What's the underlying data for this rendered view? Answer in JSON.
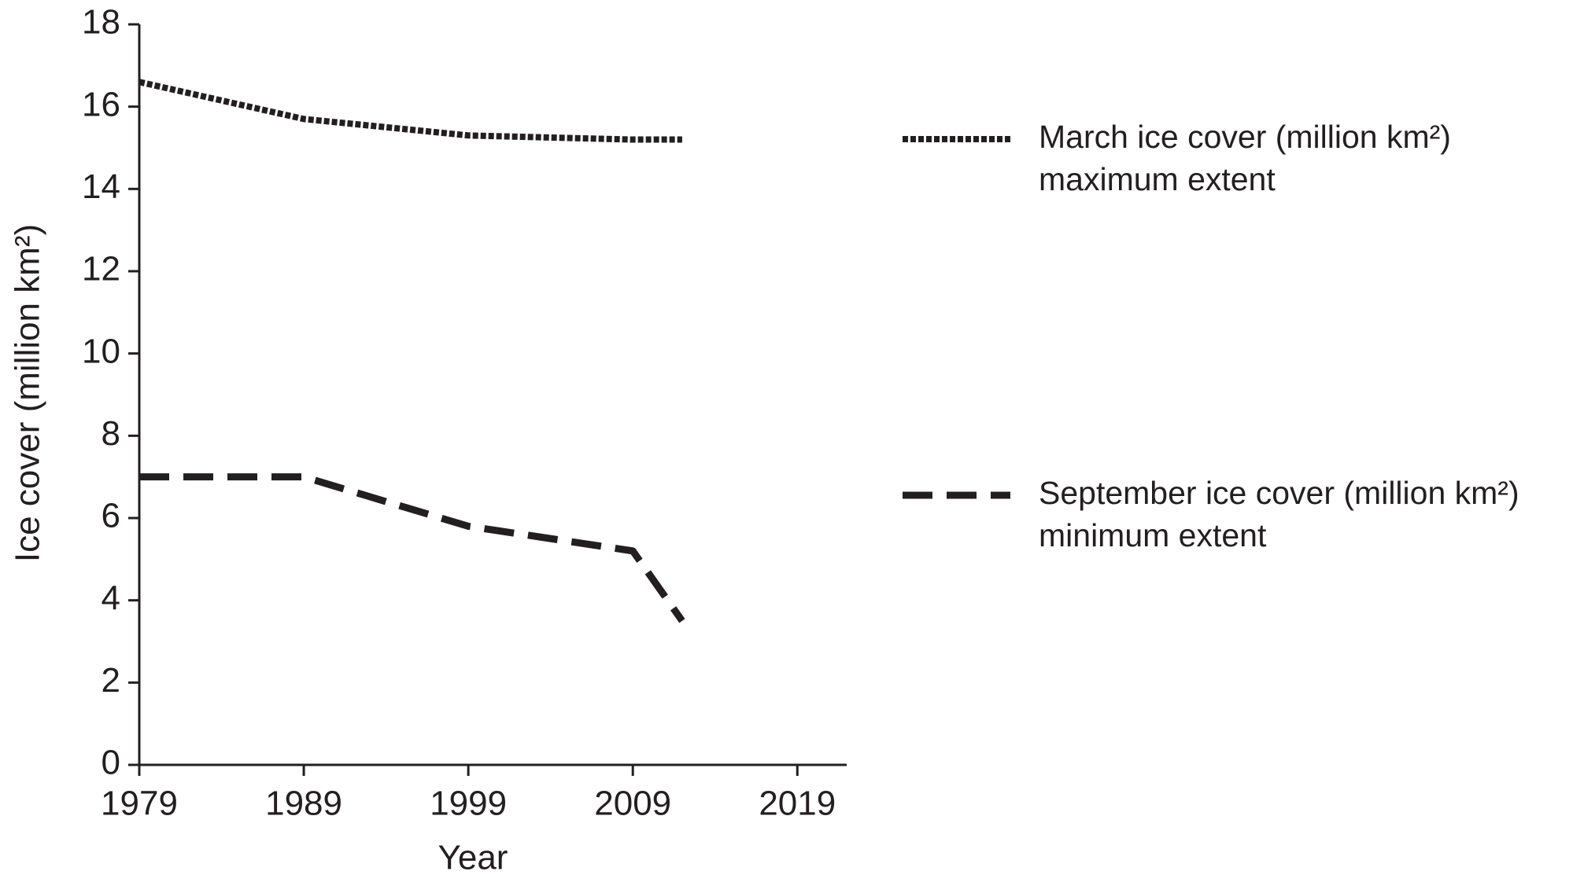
{
  "chart_data": {
    "type": "line",
    "x_label": "Year",
    "y_label": "Ice cover (million km²)",
    "x": [
      1979,
      1989,
      1999,
      2009,
      2012
    ],
    "series": [
      {
        "name": "March ice cover (million km²)",
        "description": "maximum extent",
        "color": "#231f20",
        "dash": "dotted",
        "values": [
          16.6,
          15.7,
          15.3,
          15.2,
          15.2
        ]
      },
      {
        "name": "September ice cover (million km²)",
        "description": "minimum extent",
        "color": "#231f20",
        "dash": "dashed",
        "values": [
          7.0,
          7.0,
          5.8,
          5.2,
          3.5
        ]
      }
    ],
    "xlim": [
      1979,
      2022
    ],
    "xticks": [
      1979,
      1989,
      1999,
      2009,
      2019
    ],
    "ylim": [
      0,
      18
    ],
    "yticks": [
      0,
      2,
      4,
      6,
      8,
      10,
      12,
      14,
      16,
      18
    ],
    "grid": false,
    "legend": "right"
  }
}
